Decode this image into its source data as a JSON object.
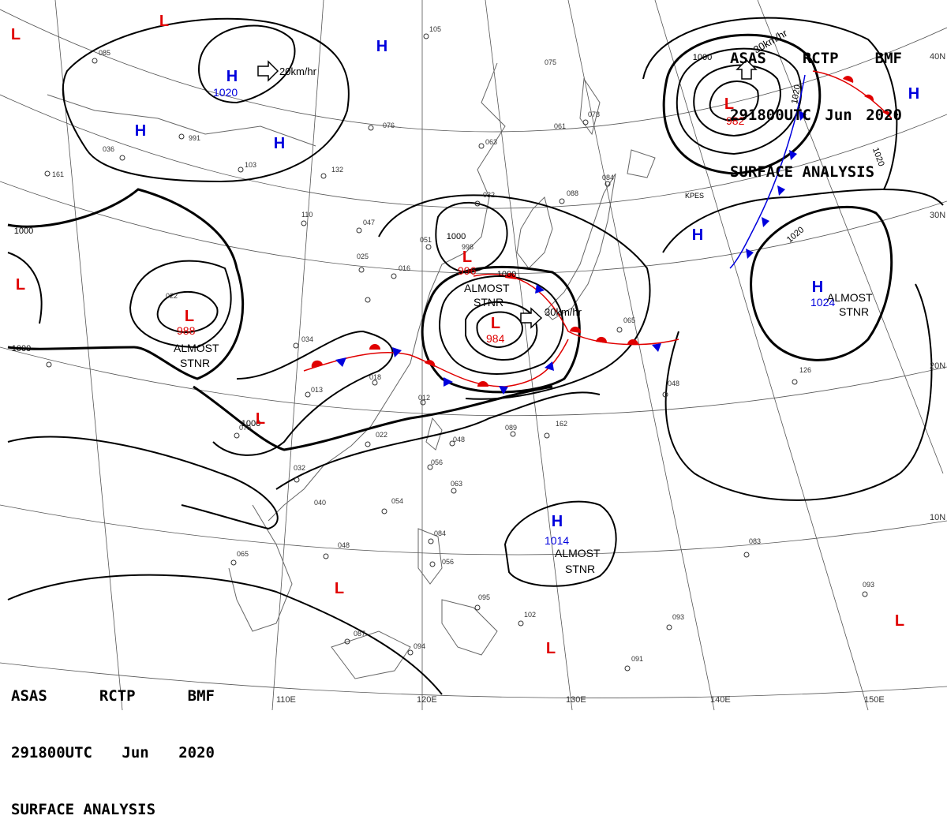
{
  "header": {
    "line1": [
      "ASAS",
      "RCTP",
      "BMF"
    ],
    "line2": [
      "291800UTC",
      "Jun",
      "2020"
    ],
    "line3": "SURFACE ANALYSIS"
  },
  "colors": {
    "low": "#e00000",
    "high": "#0000dd",
    "isobar": "#000000",
    "warm_front": "#e00000",
    "cold_front": "#0000dd",
    "grid": "#555555",
    "coast": "#666666"
  },
  "latitude_labels": [
    "40N",
    "30N",
    "20N",
    "10N"
  ],
  "longitude_labels": [
    "110E",
    "120E",
    "130E",
    "140E",
    "150E"
  ],
  "isobar_labels": [
    "1000",
    "1000",
    "1000",
    "1000",
    "1000",
    "1000",
    "1020",
    "1020",
    "1020"
  ],
  "pressure_systems": [
    {
      "type": "L",
      "value": ""
    },
    {
      "type": "L",
      "value": ""
    },
    {
      "type": "L",
      "value": ""
    },
    {
      "type": "L",
      "value": "988"
    },
    {
      "type": "L",
      "value": "996"
    },
    {
      "type": "L",
      "value": "984"
    },
    {
      "type": "L",
      "value": "982"
    },
    {
      "type": "L",
      "value": ""
    },
    {
      "type": "L",
      "value": ""
    },
    {
      "type": "L",
      "value": ""
    },
    {
      "type": "L",
      "value": ""
    },
    {
      "type": "H",
      "value": "1020"
    },
    {
      "type": "H",
      "value": ""
    },
    {
      "type": "H",
      "value": ""
    },
    {
      "type": "H",
      "value": ""
    },
    {
      "type": "H",
      "value": ""
    },
    {
      "type": "H",
      "value": ""
    },
    {
      "type": "H",
      "value": "1024"
    },
    {
      "type": "H",
      "value": "1014"
    }
  ],
  "annotations": {
    "almost": "ALMOST",
    "stnr": "STNR",
    "move_20": "20km/hr",
    "move_30a": "30km/hr",
    "move_30b": "30km/hr",
    "station_kpes": "KPES"
  },
  "station_values": [
    "085",
    "105",
    "061",
    "075",
    "078",
    "076",
    "063",
    "132",
    "103",
    "110",
    "047",
    "025",
    "016",
    "051",
    "998",
    "032",
    "088",
    "084",
    "022",
    "034",
    "018",
    "012",
    "013",
    "022",
    "032",
    "040",
    "048",
    "056",
    "063",
    "054",
    "048",
    "065",
    "084",
    "056",
    "095",
    "102",
    "093",
    "087",
    "094",
    "091",
    "093",
    "083",
    "048",
    "126",
    "162",
    "089",
    "065",
    "079",
    "991",
    "036",
    "161",
    "047"
  ]
}
